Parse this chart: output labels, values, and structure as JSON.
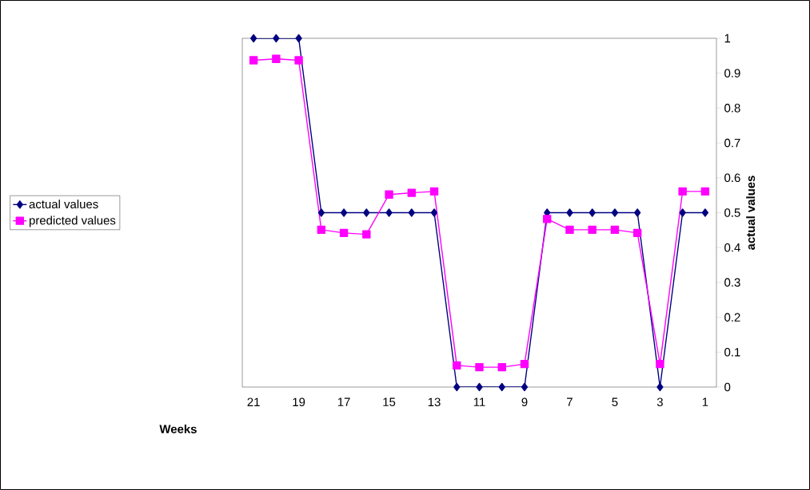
{
  "chart_data": {
    "type": "line",
    "xlabel": "Weeks",
    "ylabel": "actual values",
    "categories": [
      "21",
      null,
      "19",
      null,
      "17",
      null,
      "15",
      null,
      "13",
      null,
      "11",
      null,
      "9",
      null,
      "7",
      null,
      "5",
      null,
      "3",
      null,
      "1"
    ],
    "series": [
      {
        "name": "actual values",
        "color": "#000080",
        "marker": "diamond",
        "values": [
          1,
          1,
          1,
          0.5,
          0.5,
          0.5,
          0.5,
          0.5,
          0.5,
          0,
          0,
          0,
          0,
          0.5,
          0.5,
          0.5,
          0.5,
          0.5,
          0,
          0.5,
          0.5
        ]
      },
      {
        "name": "predicted values",
        "color": "#ff00ff",
        "marker": "square",
        "values": [
          0.937,
          0.941,
          0.937,
          0.451,
          0.442,
          0.438,
          0.552,
          0.557,
          0.561,
          0.062,
          0.057,
          0.057,
          0.066,
          0.482,
          0.451,
          0.451,
          0.451,
          0.442,
          0.066,
          0.561,
          0.561
        ]
      }
    ],
    "ylim": [
      0,
      1
    ],
    "yticks": [
      0,
      0.1,
      0.2,
      0.3,
      0.4,
      0.5,
      0.6,
      0.7,
      0.8,
      0.9,
      1
    ],
    "legend": "left",
    "grid": false,
    "line_style": "solid"
  }
}
